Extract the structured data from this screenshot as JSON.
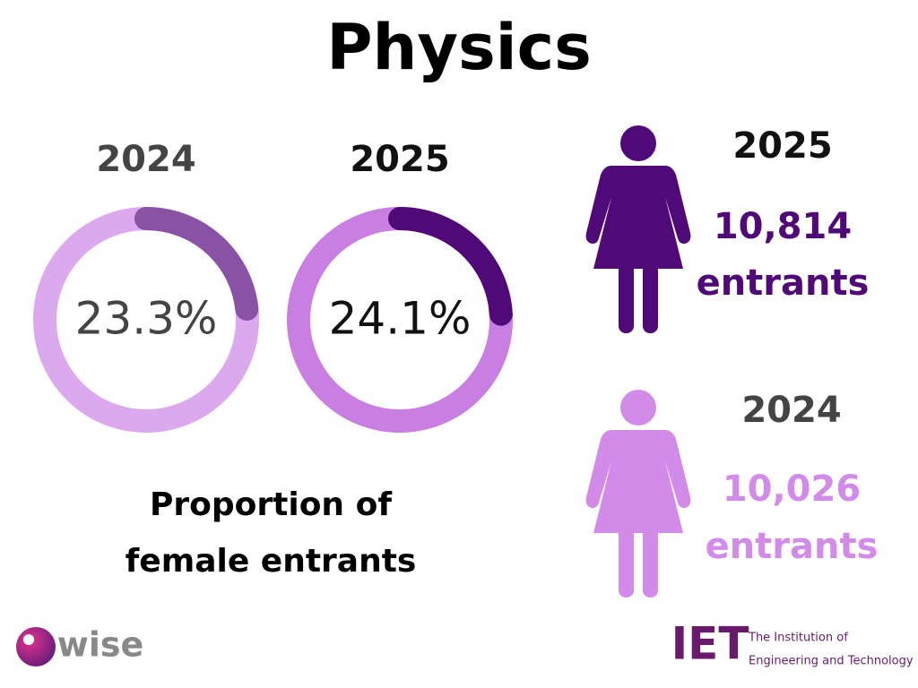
{
  "title": "Physics",
  "chart_data": [
    {
      "type": "donut",
      "title": "2024",
      "values": [
        23.3
      ],
      "value_labels": [
        "23.3%"
      ],
      "color": "#8a52a5",
      "track_color": "#dca8ee",
      "text_color": "#444444",
      "title_color": "#444444"
    },
    {
      "type": "donut",
      "title": "2025",
      "values": [
        24.1
      ],
      "value_labels": [
        "24.1%"
      ],
      "color": "#500a78",
      "track_color": "#c97ee2",
      "text_color": "#111111",
      "title_color": "#111111"
    }
  ],
  "caption": [
    "Proportion of",
    "female entrants"
  ],
  "entrants": [
    {
      "year": "2025",
      "count": "10,814",
      "unit": "entrants",
      "color": "#500a78",
      "year_color": "#111111"
    },
    {
      "year": "2024",
      "count": "10,026",
      "unit": "entrants",
      "color": "#d28be8",
      "year_color": "#444444"
    }
  ],
  "logos": {
    "wise": "wise",
    "iet": "IET",
    "iet_line1": "The Institution of",
    "iet_line2": "Engineering and Technology"
  }
}
